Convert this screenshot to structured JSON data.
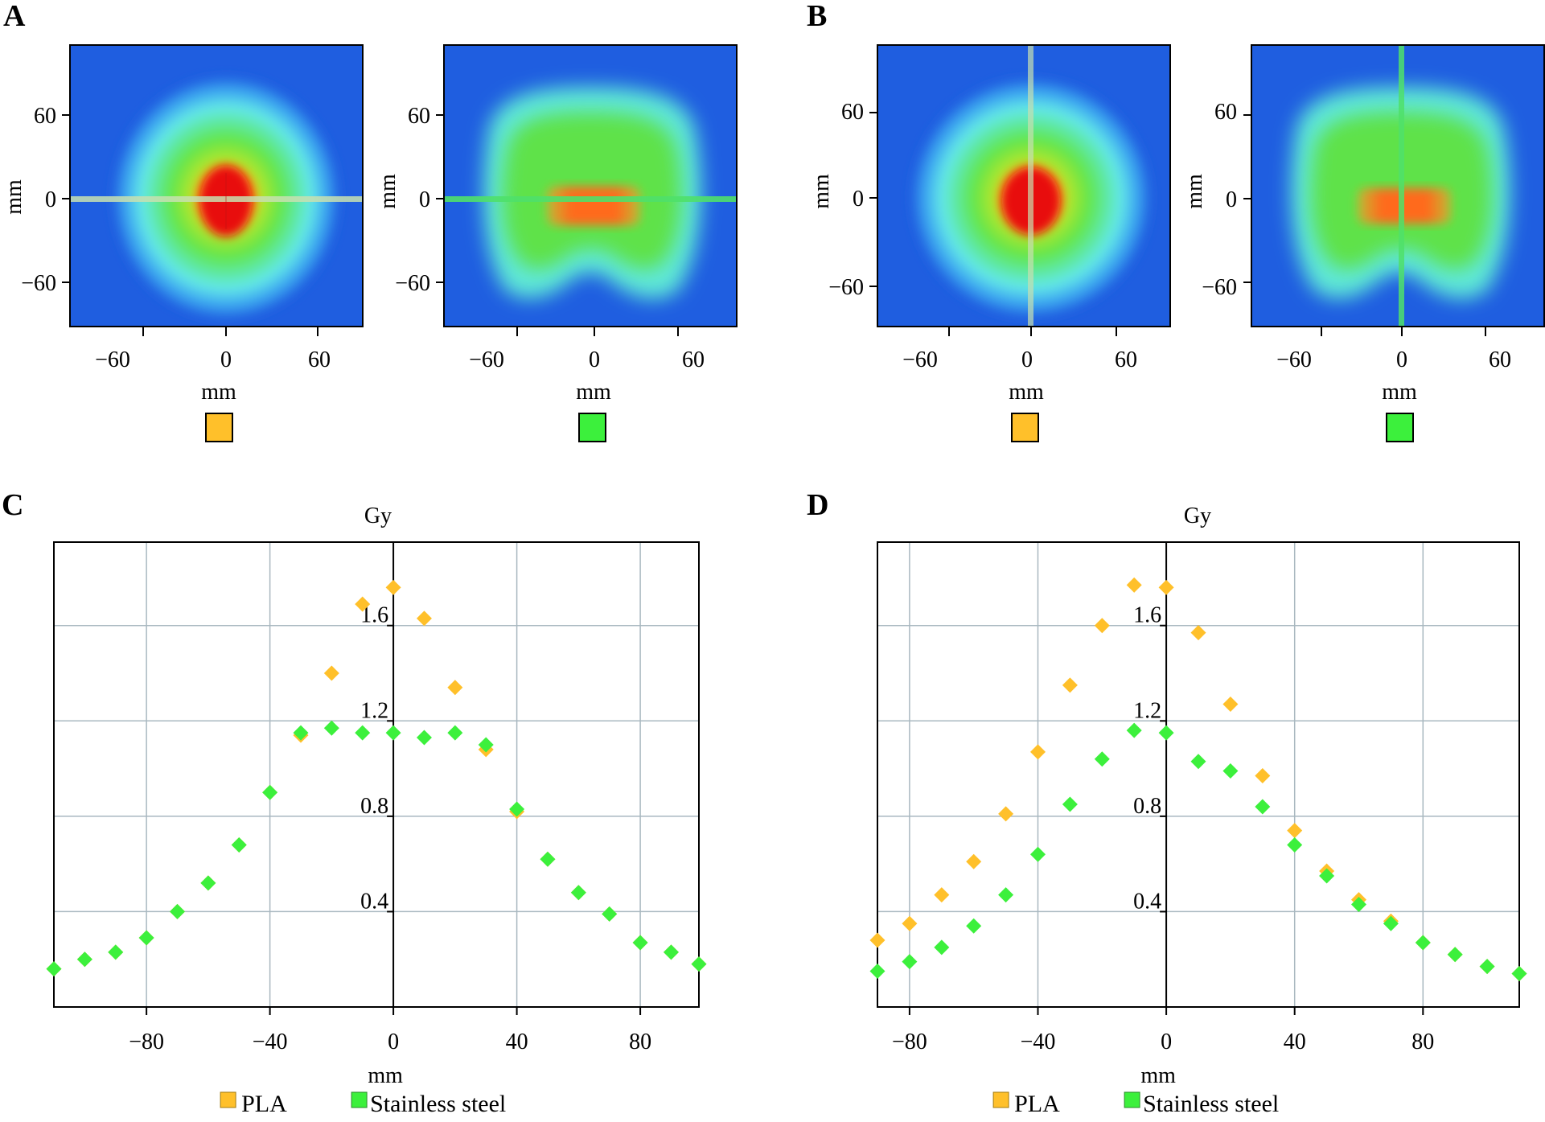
{
  "panels": {
    "A": {
      "letter": "A",
      "maps": [
        {
          "xlabel": "mm",
          "ylabel": "mm",
          "xticks": [
            "−60",
            "0",
            "60"
          ],
          "yticks": [
            "60",
            "0",
            "−60"
          ],
          "material": "PLA",
          "swatch": "#ffc02a",
          "beam": "horizontal",
          "dose_shape": "round"
        },
        {
          "xlabel": "mm",
          "ylabel": "mm",
          "xticks": [
            "−60",
            "0",
            "60"
          ],
          "yticks": [
            "60",
            "0",
            "−60"
          ],
          "material": "Stainless steel",
          "swatch": "#3cf03c",
          "beam": "horizontal",
          "dose_shape": "kidney"
        }
      ]
    },
    "B": {
      "letter": "B",
      "maps": [
        {
          "xlabel": "mm",
          "ylabel": "mm",
          "xticks": [
            "−60",
            "0",
            "60"
          ],
          "yticks": [
            "60",
            "0",
            "−60"
          ],
          "material": "PLA",
          "swatch": "#ffc02a",
          "beam": "vertical",
          "dose_shape": "round"
        },
        {
          "xlabel": "mm",
          "ylabel": "mm",
          "xticks": [
            "−60",
            "0",
            "60"
          ],
          "yticks": [
            "60",
            "0",
            "−60"
          ],
          "material": "Stainless steel",
          "swatch": "#3cf03c",
          "beam": "vertical",
          "dose_shape": "kidney"
        }
      ]
    }
  },
  "colors": {
    "pla": "#ffc02a",
    "steel": "#3cf03c",
    "grid": "#a9b8c0",
    "map_bg": "#1f5ee0"
  },
  "chart_data": [
    {
      "type": "scatter",
      "panel": "C",
      "title": "Gy",
      "xlabel": "mm",
      "ylabel": "",
      "xlim": [
        -110,
        99
      ],
      "ylim": [
        0,
        1.95
      ],
      "xticks": [
        -80,
        -40,
        0,
        40,
        80
      ],
      "yticks": [
        0.4,
        0.8,
        1.2,
        1.6
      ],
      "xtick_labels": [
        "−80",
        "−40",
        "0",
        "40",
        "80"
      ],
      "ytick_labels": [
        "0.4",
        "0.8",
        "1.2",
        "1.6"
      ],
      "grid": true,
      "series": [
        {
          "name": "PLA",
          "color": "#ffc02a",
          "x": [
            -110,
            -100,
            -90,
            -80,
            -70,
            -60,
            -50,
            -40,
            -30,
            -20,
            -10,
            0,
            10,
            20,
            30,
            40,
            50,
            60,
            70,
            80,
            90,
            99
          ],
          "y": [
            0.16,
            0.2,
            0.23,
            0.29,
            0.4,
            0.52,
            0.68,
            0.9,
            1.14,
            1.4,
            1.69,
            1.76,
            1.63,
            1.34,
            1.08,
            0.82,
            0.62,
            0.48,
            0.39,
            0.27,
            0.23,
            0.18
          ]
        },
        {
          "name": "Stainless steel",
          "color": "#3cf03c",
          "x": [
            -110,
            -100,
            -90,
            -80,
            -70,
            -60,
            -50,
            -40,
            -30,
            -20,
            -10,
            0,
            10,
            20,
            30,
            40,
            50,
            60,
            70,
            80,
            90,
            99
          ],
          "y": [
            0.16,
            0.2,
            0.23,
            0.29,
            0.4,
            0.52,
            0.68,
            0.9,
            1.15,
            1.17,
            1.15,
            1.15,
            1.13,
            1.15,
            1.1,
            0.83,
            0.62,
            0.48,
            0.39,
            0.27,
            0.23,
            0.18
          ]
        }
      ]
    },
    {
      "type": "scatter",
      "panel": "D",
      "title": "Gy",
      "xlabel": "mm",
      "ylabel": "",
      "xlim": [
        -90,
        110
      ],
      "ylim": [
        0,
        1.95
      ],
      "xticks": [
        -80,
        -40,
        0,
        40,
        80
      ],
      "yticks": [
        0.4,
        0.8,
        1.2,
        1.6
      ],
      "xtick_labels": [
        "−80",
        "−40",
        "0",
        "40",
        "80"
      ],
      "ytick_labels": [
        "0.4",
        "0.8",
        "1.2",
        "1.6"
      ],
      "grid": true,
      "series": [
        {
          "name": "PLA",
          "color": "#ffc02a",
          "x": [
            -90,
            -80,
            -70,
            -60,
            -50,
            -40,
            -30,
            -20,
            -10,
            0,
            10,
            20,
            30,
            40,
            50,
            60,
            70,
            80,
            90,
            100,
            110
          ],
          "y": [
            0.28,
            0.35,
            0.47,
            0.61,
            0.81,
            1.07,
            1.35,
            1.6,
            1.77,
            1.76,
            1.57,
            1.27,
            0.97,
            0.74,
            0.57,
            0.45,
            0.36,
            0.27,
            0.22,
            0.17,
            0.14
          ]
        },
        {
          "name": "Stainless steel",
          "color": "#3cf03c",
          "x": [
            -90,
            -80,
            -70,
            -60,
            -50,
            -40,
            -30,
            -20,
            -10,
            0,
            10,
            20,
            30,
            40,
            50,
            60,
            70,
            80,
            90,
            100,
            110
          ],
          "y": [
            0.15,
            0.19,
            0.25,
            0.34,
            0.47,
            0.64,
            0.85,
            1.04,
            1.16,
            1.15,
            1.03,
            0.99,
            0.84,
            0.68,
            0.55,
            0.43,
            0.35,
            0.27,
            0.22,
            0.17,
            0.14
          ]
        }
      ]
    }
  ]
}
